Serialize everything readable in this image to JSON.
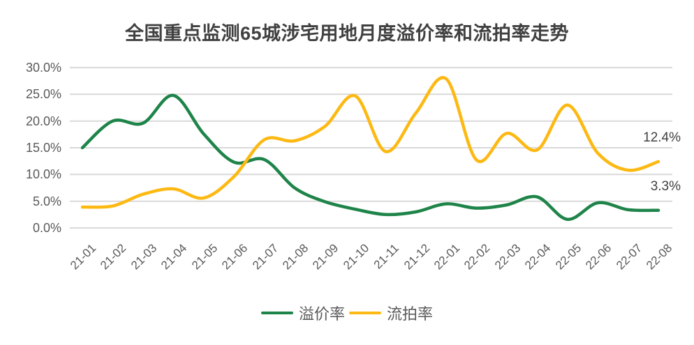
{
  "chart_data": {
    "type": "line",
    "title": "全国重点监测65城涉宅用地月度溢价率和流拍率走势",
    "categories": [
      "21-01",
      "21-02",
      "21-03",
      "21-04",
      "21-05",
      "21-06",
      "21-07",
      "21-08",
      "21-09",
      "21-10",
      "21-11",
      "21-12",
      "22-01",
      "22-02",
      "22-03",
      "22-04",
      "22-05",
      "22-06",
      "22-07",
      "22-08"
    ],
    "series": [
      {
        "name": "溢价率",
        "color": "#1E8449",
        "values": [
          15.0,
          20.0,
          19.6,
          24.8,
          17.6,
          12.3,
          12.8,
          7.5,
          4.9,
          3.5,
          2.5,
          3.0,
          4.5,
          3.7,
          4.3,
          5.8,
          1.6,
          4.7,
          3.4,
          3.3
        ],
        "end_label": "3.3%"
      },
      {
        "name": "流拍率",
        "color": "#FDB913",
        "values": [
          3.9,
          4.1,
          6.3,
          7.3,
          5.6,
          9.6,
          16.5,
          16.3,
          19.0,
          24.7,
          14.3,
          21.5,
          27.9,
          12.7,
          17.7,
          14.6,
          23.0,
          14.0,
          10.8,
          12.4
        ],
        "end_label": "12.4%"
      }
    ],
    "ylim": [
      0,
      30
    ],
    "ytick_step": 5,
    "ytick_labels": [
      "0.0%",
      "5.0%",
      "10.0%",
      "15.0%",
      "20.0%",
      "25.0%",
      "30.0%"
    ],
    "xlabel": "",
    "ylabel": "",
    "grid": "horizontal",
    "legend_position": "bottom"
  },
  "colors": {
    "gridline": "#D9D9D9",
    "axis_text": "#595959",
    "title_text": "#404040",
    "annotation_text": "#404040",
    "background": "#FFFFFF"
  }
}
